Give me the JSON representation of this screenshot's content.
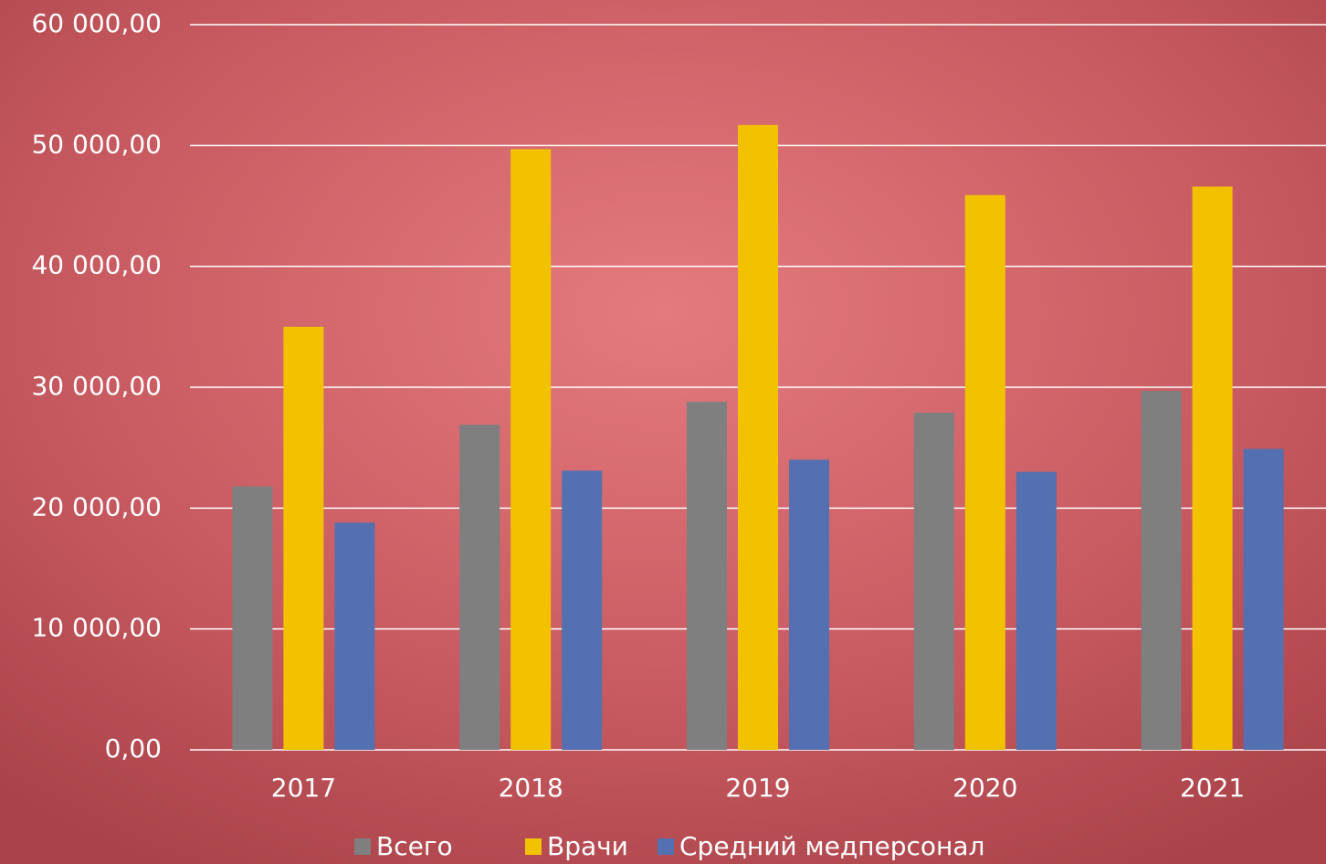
{
  "chart_data": {
    "type": "bar",
    "categories": [
      "2017",
      "2018",
      "2019",
      "2020",
      "2021"
    ],
    "series": [
      {
        "name": "Всего",
        "color": "#7f7f7f",
        "values": [
          21800,
          26900,
          28800,
          27900,
          29700
        ]
      },
      {
        "name": "Врачи",
        "color": "#f2c200",
        "values": [
          35000,
          49700,
          51700,
          45900,
          46600
        ]
      },
      {
        "name": "Средний медперсонал",
        "color": "#5470b0",
        "values": [
          18800,
          23100,
          24000,
          23000,
          24900
        ]
      }
    ],
    "ylim": [
      0,
      60000
    ],
    "yticks": [
      {
        "value": 0,
        "label": "0,00"
      },
      {
        "value": 10000,
        "label": "10 000,00"
      },
      {
        "value": 20000,
        "label": "20 000,00"
      },
      {
        "value": 30000,
        "label": "30 000,00"
      },
      {
        "value": 40000,
        "label": "40 000,00"
      },
      {
        "value": 50000,
        "label": "50 000,00"
      },
      {
        "value": 60000,
        "label": "60 000,00"
      }
    ],
    "grid": true,
    "legend": "bottom"
  }
}
